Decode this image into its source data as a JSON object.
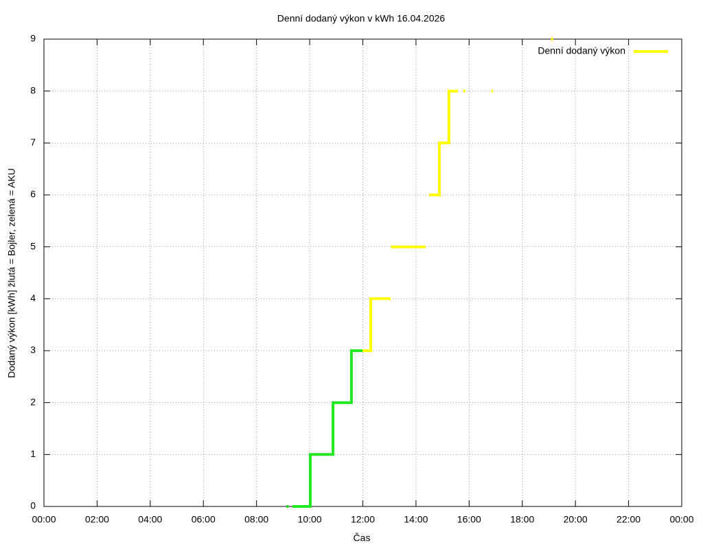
{
  "chart_data": {
    "type": "line",
    "title": "Denní dodaný výkon v kWh 16.04.2026",
    "x_label": "Čas",
    "y_label": "Dodaný výkon [kWh]  žlutá = Bojler, zelená = AKU",
    "xlim": [
      0,
      24
    ],
    "ylim": [
      0,
      9
    ],
    "xticks": [
      {
        "value": 0,
        "label": "00:00"
      },
      {
        "value": 2,
        "label": "02:00"
      },
      {
        "value": 4,
        "label": "04:00"
      },
      {
        "value": 6,
        "label": "06:00"
      },
      {
        "value": 8,
        "label": "08:00"
      },
      {
        "value": 10,
        "label": "10:00"
      },
      {
        "value": 12,
        "label": "12:00"
      },
      {
        "value": 14,
        "label": "14:00"
      },
      {
        "value": 16,
        "label": "16:00"
      },
      {
        "value": 18,
        "label": "18:00"
      },
      {
        "value": 20,
        "label": "20:00"
      },
      {
        "value": 22,
        "label": "22:00"
      },
      {
        "value": 24,
        "label": "00:00"
      }
    ],
    "yticks": [
      0,
      1,
      2,
      3,
      4,
      5,
      6,
      7,
      8,
      9
    ],
    "grid": true,
    "legend": "top-right",
    "series": [
      {
        "color": "#22e822",
        "x": [
          9.12,
          9.2,
          9.25,
          9.35,
          10.02,
          10.02,
          10.88,
          10.88,
          11.57,
          11.57,
          11.99
        ],
        "values": [
          0,
          0,
          null,
          0,
          0,
          1,
          1,
          2,
          2,
          3,
          3
        ]
      },
      {
        "name": "Denní dodaný výkon",
        "color": "#ffff00",
        "x": [
          11.99,
          12.3,
          12.3,
          13.05,
          13.06,
          13.06,
          14.36,
          14.42,
          14.49,
          14.88,
          14.88,
          15.24,
          15.24,
          15.58,
          15.7,
          15.78,
          15.86,
          15.9,
          16.84,
          16.9,
          17.5,
          19.08,
          19.16
        ],
        "values": [
          3,
          3,
          4,
          4,
          null,
          5,
          5,
          null,
          6,
          6,
          7,
          7,
          8,
          8,
          null,
          8,
          8,
          null,
          8,
          8,
          null,
          9,
          9
        ]
      }
    ]
  }
}
